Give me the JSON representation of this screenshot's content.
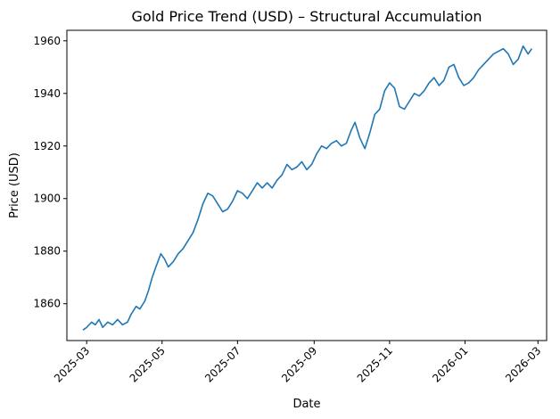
{
  "chart_data": {
    "type": "line",
    "title": "Gold Price Trend (USD) – Structural Accumulation",
    "xlabel": "Date",
    "ylabel": "Price (USD)",
    "x_type": "date",
    "xlim": [
      "2025-02-13",
      "2026-03-08"
    ],
    "ylim": [
      1846,
      1964
    ],
    "grid": false,
    "legend": "none",
    "x_ticks": [
      {
        "value": "2025-03-01",
        "label": "2025-03"
      },
      {
        "value": "2025-05-01",
        "label": "2025-05"
      },
      {
        "value": "2025-07-01",
        "label": "2025-07"
      },
      {
        "value": "2025-09-01",
        "label": "2025-09"
      },
      {
        "value": "2025-11-01",
        "label": "2025-11"
      },
      {
        "value": "2026-01-01",
        "label": "2026-01"
      },
      {
        "value": "2026-03-01",
        "label": "2026-03"
      }
    ],
    "y_ticks": [
      1860,
      1880,
      1900,
      1920,
      1940,
      1960
    ],
    "series": [
      {
        "name": "Gold Price",
        "color": "#1f77b4",
        "x": [
          "2025-02-26",
          "2025-03-01",
          "2025-03-05",
          "2025-03-08",
          "2025-03-11",
          "2025-03-14",
          "2025-03-18",
          "2025-03-22",
          "2025-03-26",
          "2025-03-30",
          "2025-04-03",
          "2025-04-06",
          "2025-04-10",
          "2025-04-13",
          "2025-04-17",
          "2025-04-20",
          "2025-04-23",
          "2025-04-26",
          "2025-04-30",
          "2025-05-03",
          "2025-05-06",
          "2025-05-10",
          "2025-05-14",
          "2025-05-18",
          "2025-05-22",
          "2025-05-26",
          "2025-05-30",
          "2025-06-03",
          "2025-06-07",
          "2025-06-11",
          "2025-06-15",
          "2025-06-19",
          "2025-06-23",
          "2025-06-27",
          "2025-07-01",
          "2025-07-05",
          "2025-07-09",
          "2025-07-13",
          "2025-07-17",
          "2025-07-21",
          "2025-07-25",
          "2025-07-29",
          "2025-08-02",
          "2025-08-06",
          "2025-08-10",
          "2025-08-14",
          "2025-08-18",
          "2025-08-22",
          "2025-08-26",
          "2025-08-30",
          "2025-09-03",
          "2025-09-07",
          "2025-09-11",
          "2025-09-15",
          "2025-09-19",
          "2025-09-23",
          "2025-09-27",
          "2025-10-01",
          "2025-10-04",
          "2025-10-08",
          "2025-10-12",
          "2025-10-16",
          "2025-10-20",
          "2025-10-24",
          "2025-10-28",
          "2025-11-01",
          "2025-11-05",
          "2025-11-09",
          "2025-11-13",
          "2025-11-17",
          "2025-11-21",
          "2025-11-25",
          "2025-11-29",
          "2025-12-03",
          "2025-12-07",
          "2025-12-11",
          "2025-12-15",
          "2025-12-19",
          "2025-12-23",
          "2025-12-27",
          "2025-12-31",
          "2026-01-04",
          "2026-01-08",
          "2026-01-12",
          "2026-01-16",
          "2026-01-20",
          "2026-01-24",
          "2026-01-28",
          "2026-02-01",
          "2026-02-05",
          "2026-02-09",
          "2026-02-13",
          "2026-02-17",
          "2026-02-21",
          "2026-02-24"
        ],
        "values": [
          1850,
          1851,
          1853,
          1852,
          1854,
          1851,
          1853,
          1852,
          1854,
          1852,
          1853,
          1856,
          1859,
          1858,
          1861,
          1865,
          1870,
          1874,
          1879,
          1877,
          1874,
          1876,
          1879,
          1881,
          1884,
          1887,
          1892,
          1898,
          1902,
          1901,
          1898,
          1895,
          1896,
          1899,
          1903,
          1902,
          1900,
          1903,
          1906,
          1904,
          1906,
          1904,
          1907,
          1909,
          1913,
          1911,
          1912,
          1914,
          1911,
          1913,
          1917,
          1920,
          1919,
          1921,
          1922,
          1920,
          1921,
          1926,
          1929,
          1923,
          1919,
          1925,
          1932,
          1934,
          1941,
          1944,
          1942,
          1935,
          1934,
          1937,
          1940,
          1939,
          1941,
          1944,
          1946,
          1943,
          1945,
          1950,
          1951,
          1946,
          1943,
          1944,
          1946,
          1949,
          1951,
          1953,
          1955,
          1956,
          1957,
          1955,
          1951,
          1953,
          1958,
          1955,
          1957
        ]
      }
    ]
  }
}
